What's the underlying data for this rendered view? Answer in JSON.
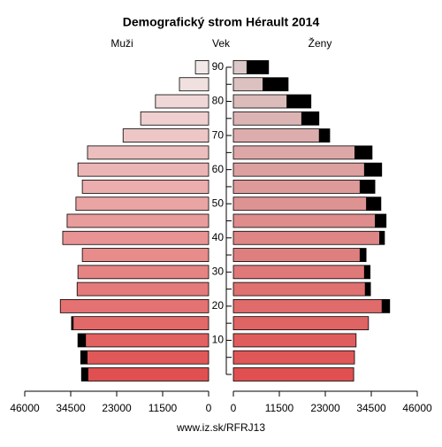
{
  "chart_data": {
    "type": "pyramid",
    "title": "Demografický strom Hérault 2014",
    "left_label": "Muži",
    "center_label": "Vek",
    "right_label": "Ženy",
    "source": "www.iz.sk/RFRJ13",
    "categories": [
      null,
      null,
      "10",
      null,
      "20",
      null,
      "30",
      null,
      "40",
      null,
      "50",
      null,
      "60",
      null,
      "70",
      null,
      "80",
      null,
      "90"
    ],
    "series": [
      {
        "name": "Muži",
        "color": [
          "#e05050",
          "#f2e8e8"
        ],
        "excess_color": "#000000",
        "values": [
          31800,
          32000,
          32700,
          34300,
          37100,
          32900,
          32700,
          31600,
          36500,
          35400,
          33200,
          31600,
          32700,
          30300,
          21400,
          17000,
          13300,
          7300,
          3300
        ]
      },
      {
        "name": "Ženy",
        "color": [
          "#e05050",
          "#dcc8c8"
        ],
        "excess_color": "#000000",
        "values": [
          30100,
          30300,
          30700,
          33800,
          39100,
          34300,
          34200,
          33200,
          37800,
          38200,
          36900,
          35400,
          37100,
          34700,
          24100,
          21400,
          19400,
          13700,
          8800
        ]
      }
    ],
    "xlim": [
      0,
      46000
    ],
    "xticks": [
      0,
      11500,
      23000,
      34500,
      46000
    ]
  }
}
